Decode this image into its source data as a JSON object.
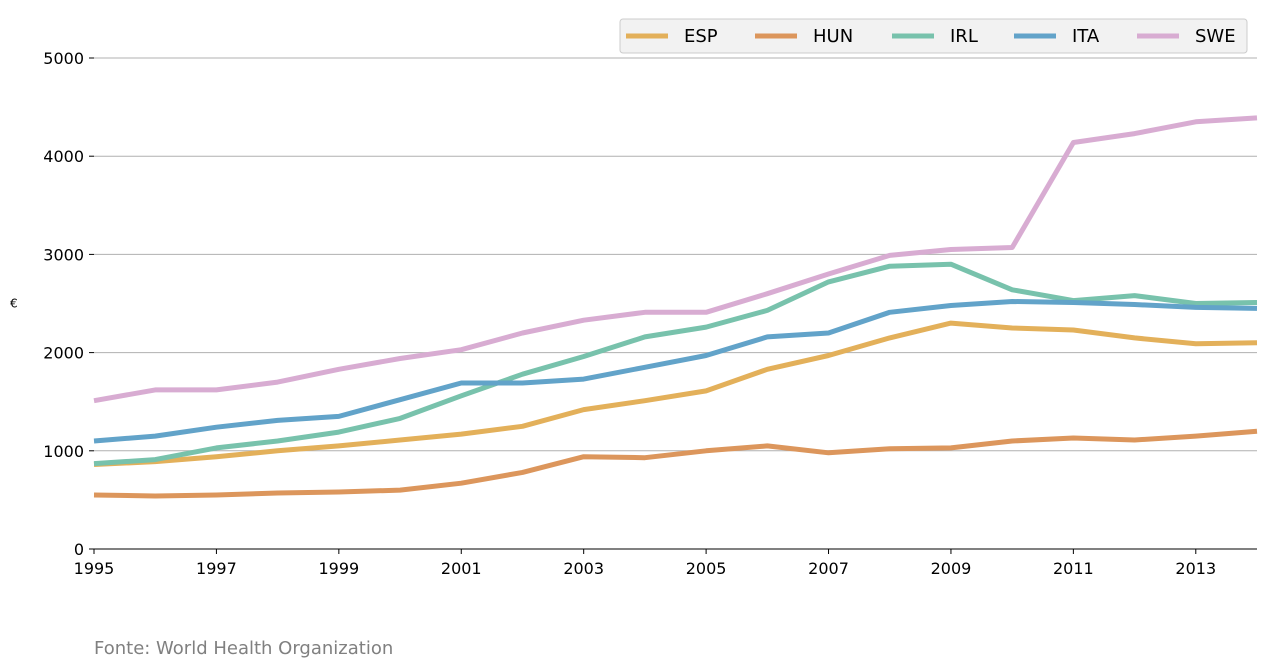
{
  "chart_data": {
    "type": "line",
    "title": "",
    "xlabel": "",
    "ylabel": "€",
    "xlim": [
      1995,
      2014
    ],
    "ylim": [
      0,
      5000
    ],
    "grid": "horizontal",
    "legend_position": "top-right",
    "x": [
      1995,
      1996,
      1997,
      1998,
      1999,
      2000,
      2001,
      2002,
      2003,
      2004,
      2005,
      2006,
      2007,
      2008,
      2009,
      2010,
      2011,
      2012,
      2013,
      2014
    ],
    "x_ticks": [
      "1995",
      "1997",
      "1999",
      "2001",
      "2003",
      "2005",
      "2007",
      "2009",
      "2011",
      "2013"
    ],
    "y_ticks": [
      "0",
      "1000",
      "2000",
      "3000",
      "4000",
      "5000"
    ],
    "series": [
      {
        "name": "ESP",
        "color": "#e3b05a",
        "values": [
          860,
          890,
          940,
          1000,
          1050,
          1110,
          1170,
          1250,
          1420,
          1510,
          1610,
          1830,
          1970,
          2150,
          2300,
          2250,
          2230,
          2150,
          2090,
          2100
        ]
      },
      {
        "name": "HUN",
        "color": "#dc965c",
        "values": [
          550,
          540,
          550,
          570,
          580,
          600,
          670,
          780,
          940,
          930,
          1000,
          1050,
          980,
          1020,
          1030,
          1100,
          1130,
          1110,
          1150,
          1200
        ]
      },
      {
        "name": "IRL",
        "color": "#78c2ac",
        "values": [
          870,
          910,
          1030,
          1100,
          1190,
          1330,
          1560,
          1780,
          1960,
          2160,
          2260,
          2430,
          2720,
          2880,
          2900,
          2640,
          2530,
          2580,
          2500,
          2510
        ]
      },
      {
        "name": "ITA",
        "color": "#62a3c9",
        "values": [
          1100,
          1150,
          1240,
          1310,
          1350,
          1520,
          1690,
          1690,
          1730,
          1850,
          1970,
          2160,
          2200,
          2410,
          2480,
          2520,
          2510,
          2490,
          2460,
          2450
        ]
      },
      {
        "name": "SWE",
        "color": "#d8acd2",
        "values": [
          1510,
          1620,
          1620,
          1700,
          1830,
          1940,
          2030,
          2200,
          2330,
          2410,
          2410,
          2600,
          2800,
          2990,
          3050,
          3070,
          4140,
          4230,
          4350,
          4390
        ]
      }
    ]
  },
  "source": "Fonte: World Health Organization"
}
